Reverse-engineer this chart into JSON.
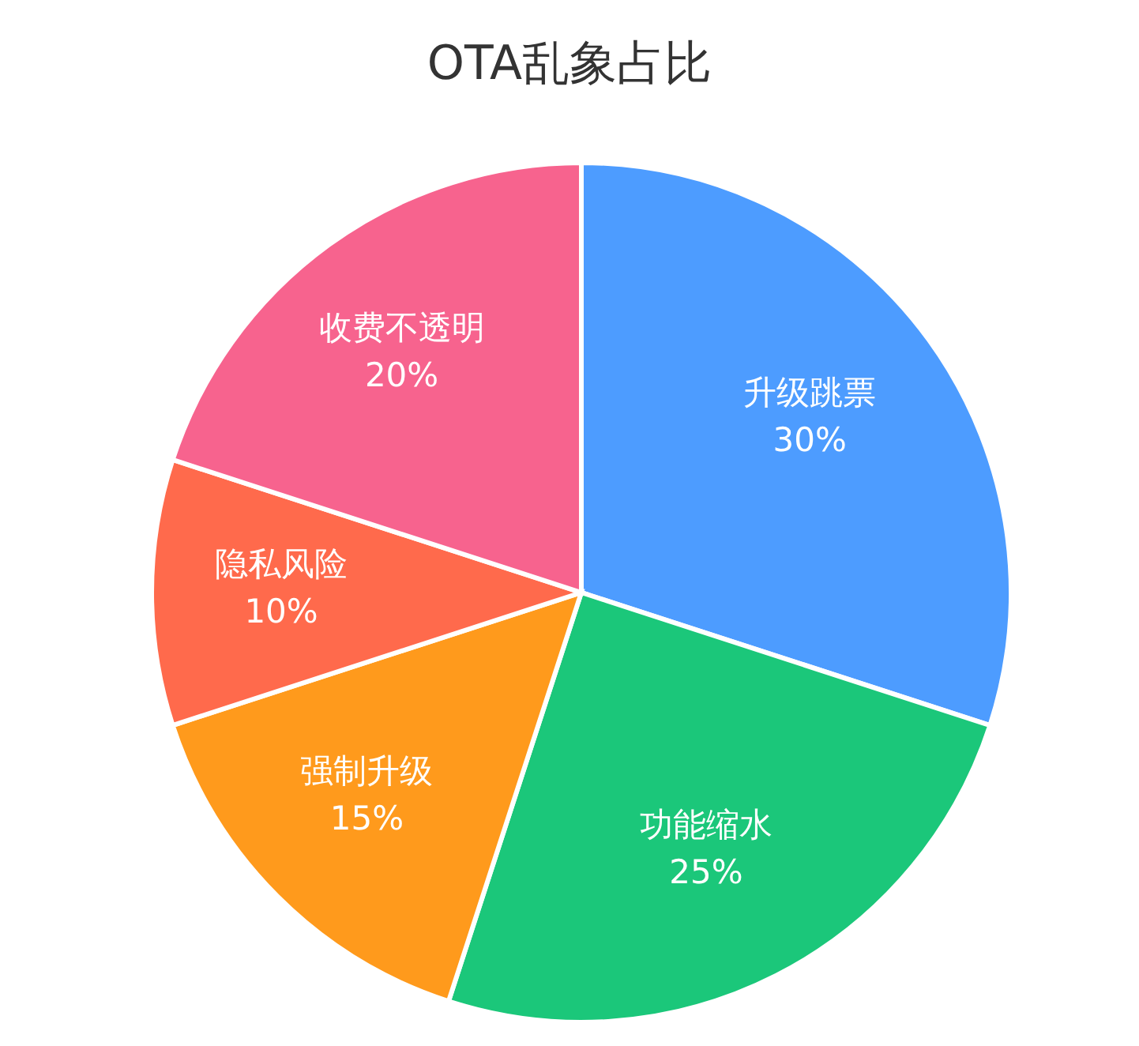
{
  "chart_data": {
    "type": "pie",
    "title": "OTA乱象占比",
    "categories": [
      "升级跳票",
      "功能缩水",
      "强制升级",
      "隐私风险",
      "收费不透明"
    ],
    "values": [
      30,
      25,
      15,
      10,
      20
    ],
    "value_labels": [
      "30%",
      "25%",
      "15%",
      "10%",
      "20%"
    ],
    "colors": [
      "#4d9cff",
      "#1bc77a",
      "#ff9a1c",
      "#ff6a4c",
      "#f7638e"
    ],
    "legend": false
  }
}
